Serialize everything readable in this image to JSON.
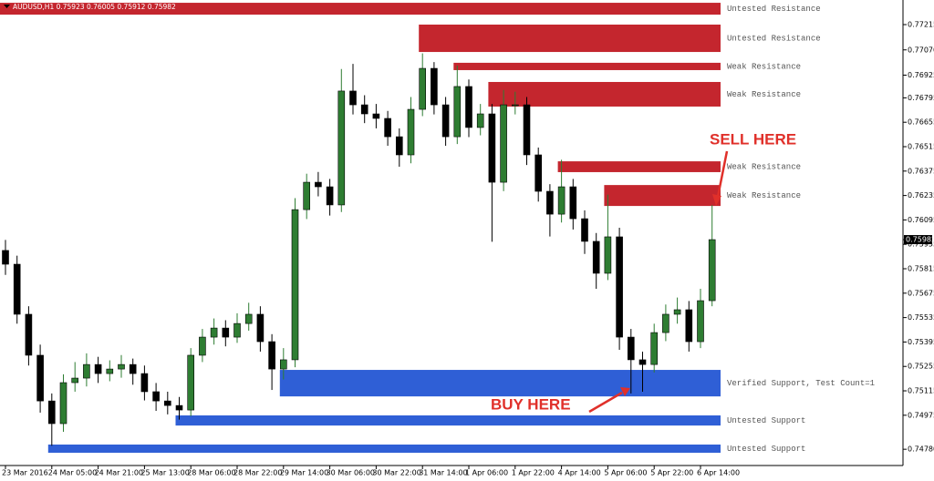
{
  "chart_data": {
    "type": "candlestick",
    "title": "AUDUSD,H1 0.75923 0.76005 0.75912 0.75982",
    "last_price": 0.75982,
    "categories": [
      "23 Mar 2016",
      null,
      null,
      null,
      "24 Mar 05:00",
      null,
      null,
      null,
      "24 Mar 21:00",
      null,
      null,
      null,
      "25 Mar 13:00",
      null,
      null,
      null,
      "28 Mar 06:00",
      null,
      null,
      null,
      "28 Mar 22:00",
      null,
      null,
      null,
      "29 Mar 14:00",
      null,
      null,
      null,
      "30 Mar 06:00",
      null,
      null,
      null,
      "30 Mar 22:00",
      null,
      null,
      null,
      "31 Mar 14:00",
      null,
      null,
      null,
      "1 Apr 06:00",
      null,
      null,
      null,
      "1 Apr 22:00",
      null,
      null,
      null,
      "4 Apr 14:00",
      null,
      null,
      null,
      "5 Apr 06:00",
      null,
      null,
      null,
      "5 Apr 22:00",
      null,
      null,
      null,
      "6 Apr 14:00",
      null
    ],
    "open": [
      0.7592,
      0.75841,
      0.75554,
      0.75319,
      0.75057,
      0.74927,
      0.75162,
      0.75188,
      0.75266,
      0.75214,
      0.7524,
      0.75266,
      0.75214,
      0.7511,
      0.75057,
      0.75031,
      0.75005,
      0.75319,
      0.75423,
      0.75475,
      0.75423,
      0.75501,
      0.75554,
      0.75397,
      0.7524,
      0.75293,
      0.76154,
      0.76311,
      0.76285,
      0.76181,
      0.76834,
      0.76755,
      0.76703,
      0.76677,
      0.76572,
      0.76468,
      0.76729,
      0.76964,
      0.76755,
      0.76572,
      0.7686,
      0.76625,
      0.76703,
      0.76311,
      0.76755,
      0.76755,
      0.76468,
      0.76259,
      0.76128,
      0.76285,
      0.76102,
      0.75972,
      0.75789,
      0.75998,
      0.75423,
      0.75293,
      0.75266,
      0.75449,
      0.75554,
      0.7558,
      0.75397,
      0.75632
    ],
    "high": [
      0.7598,
      0.7589,
      0.756,
      0.7538,
      0.751,
      0.7521,
      0.7528,
      0.7533,
      0.7531,
      0.7529,
      0.7532,
      0.753,
      0.7526,
      0.7516,
      0.7511,
      0.7508,
      0.7536,
      0.7547,
      0.7553,
      0.7552,
      0.7556,
      0.7562,
      0.756,
      0.7544,
      0.7536,
      0.7622,
      0.7636,
      0.7637,
      0.7633,
      0.7696,
      0.7699,
      0.7681,
      0.7676,
      0.7672,
      0.7662,
      0.768,
      0.7705,
      0.77,
      0.768,
      0.7698,
      0.769,
      0.7676,
      0.7676,
      0.7684,
      0.7683,
      0.768,
      0.7651,
      0.763,
      0.7644,
      0.7633,
      0.7615,
      0.7602,
      0.7624,
      0.7605,
      0.7547,
      0.7534,
      0.755,
      0.7561,
      0.7565,
      0.7563,
      0.757,
      0.7618
    ],
    "low": [
      0.7578,
      0.755,
      0.7526,
      0.7499,
      0.748,
      0.7488,
      0.7511,
      0.7514,
      0.7516,
      0.7517,
      0.7519,
      0.7515,
      0.7506,
      0.75,
      0.7498,
      0.7495,
      0.7497,
      0.7528,
      0.7538,
      0.7537,
      0.7539,
      0.7546,
      0.7534,
      0.7512,
      0.7518,
      0.7525,
      0.761,
      0.7623,
      0.7612,
      0.7614,
      0.767,
      0.7665,
      0.7662,
      0.7652,
      0.764,
      0.7642,
      0.7669,
      0.767,
      0.7652,
      0.7653,
      0.7657,
      0.7658,
      0.7597,
      0.7626,
      0.767,
      0.7641,
      0.762,
      0.76,
      0.7608,
      0.7604,
      0.759,
      0.757,
      0.7575,
      0.7535,
      0.751,
      0.7511,
      0.7522,
      0.754,
      0.755,
      0.7534,
      0.7536,
      0.756
    ],
    "close": [
      0.75841,
      0.75554,
      0.75319,
      0.75057,
      0.74927,
      0.75162,
      0.75188,
      0.75266,
      0.75214,
      0.7524,
      0.75266,
      0.75214,
      0.7511,
      0.75057,
      0.75031,
      0.75005,
      0.75319,
      0.75423,
      0.75475,
      0.75423,
      0.75501,
      0.75554,
      0.75397,
      0.7524,
      0.75293,
      0.76154,
      0.76311,
      0.76285,
      0.76181,
      0.76834,
      0.76755,
      0.76703,
      0.76677,
      0.76572,
      0.76468,
      0.76729,
      0.76964,
      0.76755,
      0.76572,
      0.7686,
      0.76625,
      0.76703,
      0.76311,
      0.76755,
      0.76755,
      0.76468,
      0.76259,
      0.76128,
      0.76285,
      0.76102,
      0.75972,
      0.75789,
      0.75998,
      0.75423,
      0.75293,
      0.75266,
      0.75449,
      0.75554,
      0.7558,
      0.75397,
      0.75632,
      0.75982
    ],
    "up_color": "#2e7d32",
    "down_color": "#000000",
    "zones": [
      {
        "label": "Untested Resistance",
        "start": 0,
        "high": 0.7734,
        "low": 0.77272,
        "color": "#c4262e"
      },
      {
        "label": "Untested Resistance",
        "start": 36,
        "high": 0.77215,
        "low": 0.77058,
        "color": "#c4262e"
      },
      {
        "label": "Weak Resistance",
        "start": 39,
        "high": 0.76996,
        "low": 0.76954,
        "color": "#c4262e"
      },
      {
        "label": "Weak Resistance",
        "start": 42,
        "high": 0.76886,
        "low": 0.76745,
        "color": "#c4262e"
      },
      {
        "label": "Weak Resistance",
        "start": 48,
        "high": 0.76431,
        "low": 0.76369,
        "color": "#c4262e"
      },
      {
        "label": "Weak Resistance",
        "start": 52,
        "high": 0.76295,
        "low": 0.76175,
        "color": "#c4262e"
      },
      {
        "label": "Verified Support, Test Count=1",
        "start": 24,
        "high": 0.75235,
        "low": 0.75083,
        "color": "#2f5fd6"
      },
      {
        "label": "Untested Support",
        "start": 15,
        "high": 0.74974,
        "low": 0.74916,
        "color": "#2f5fd6"
      },
      {
        "label": "Untested Support",
        "start": 4,
        "high": 0.74807,
        "low": 0.7476,
        "color": "#2f5fd6"
      }
    ],
    "ylim": [
      0.74692,
      0.77356
    ],
    "yticks": [
      0.77215,
      {
        "value": 0.7707,
        "label": "0.77070"
      },
      0.76925,
      0.76795,
      0.76655,
      0.76515,
      0.76375,
      0.76235,
      0.76095,
      0.75955,
      0.75815,
      0.75675,
      0.75535,
      0.75395,
      0.75255,
      0.75115,
      0.74975,
      {
        "value": 0.7478,
        "label": "0.74780"
      }
    ],
    "annotations": [
      {
        "text": "SELL HERE",
        "color": "#e0302a"
      },
      {
        "text": "BUY HERE",
        "color": "#e0302a"
      }
    ]
  }
}
